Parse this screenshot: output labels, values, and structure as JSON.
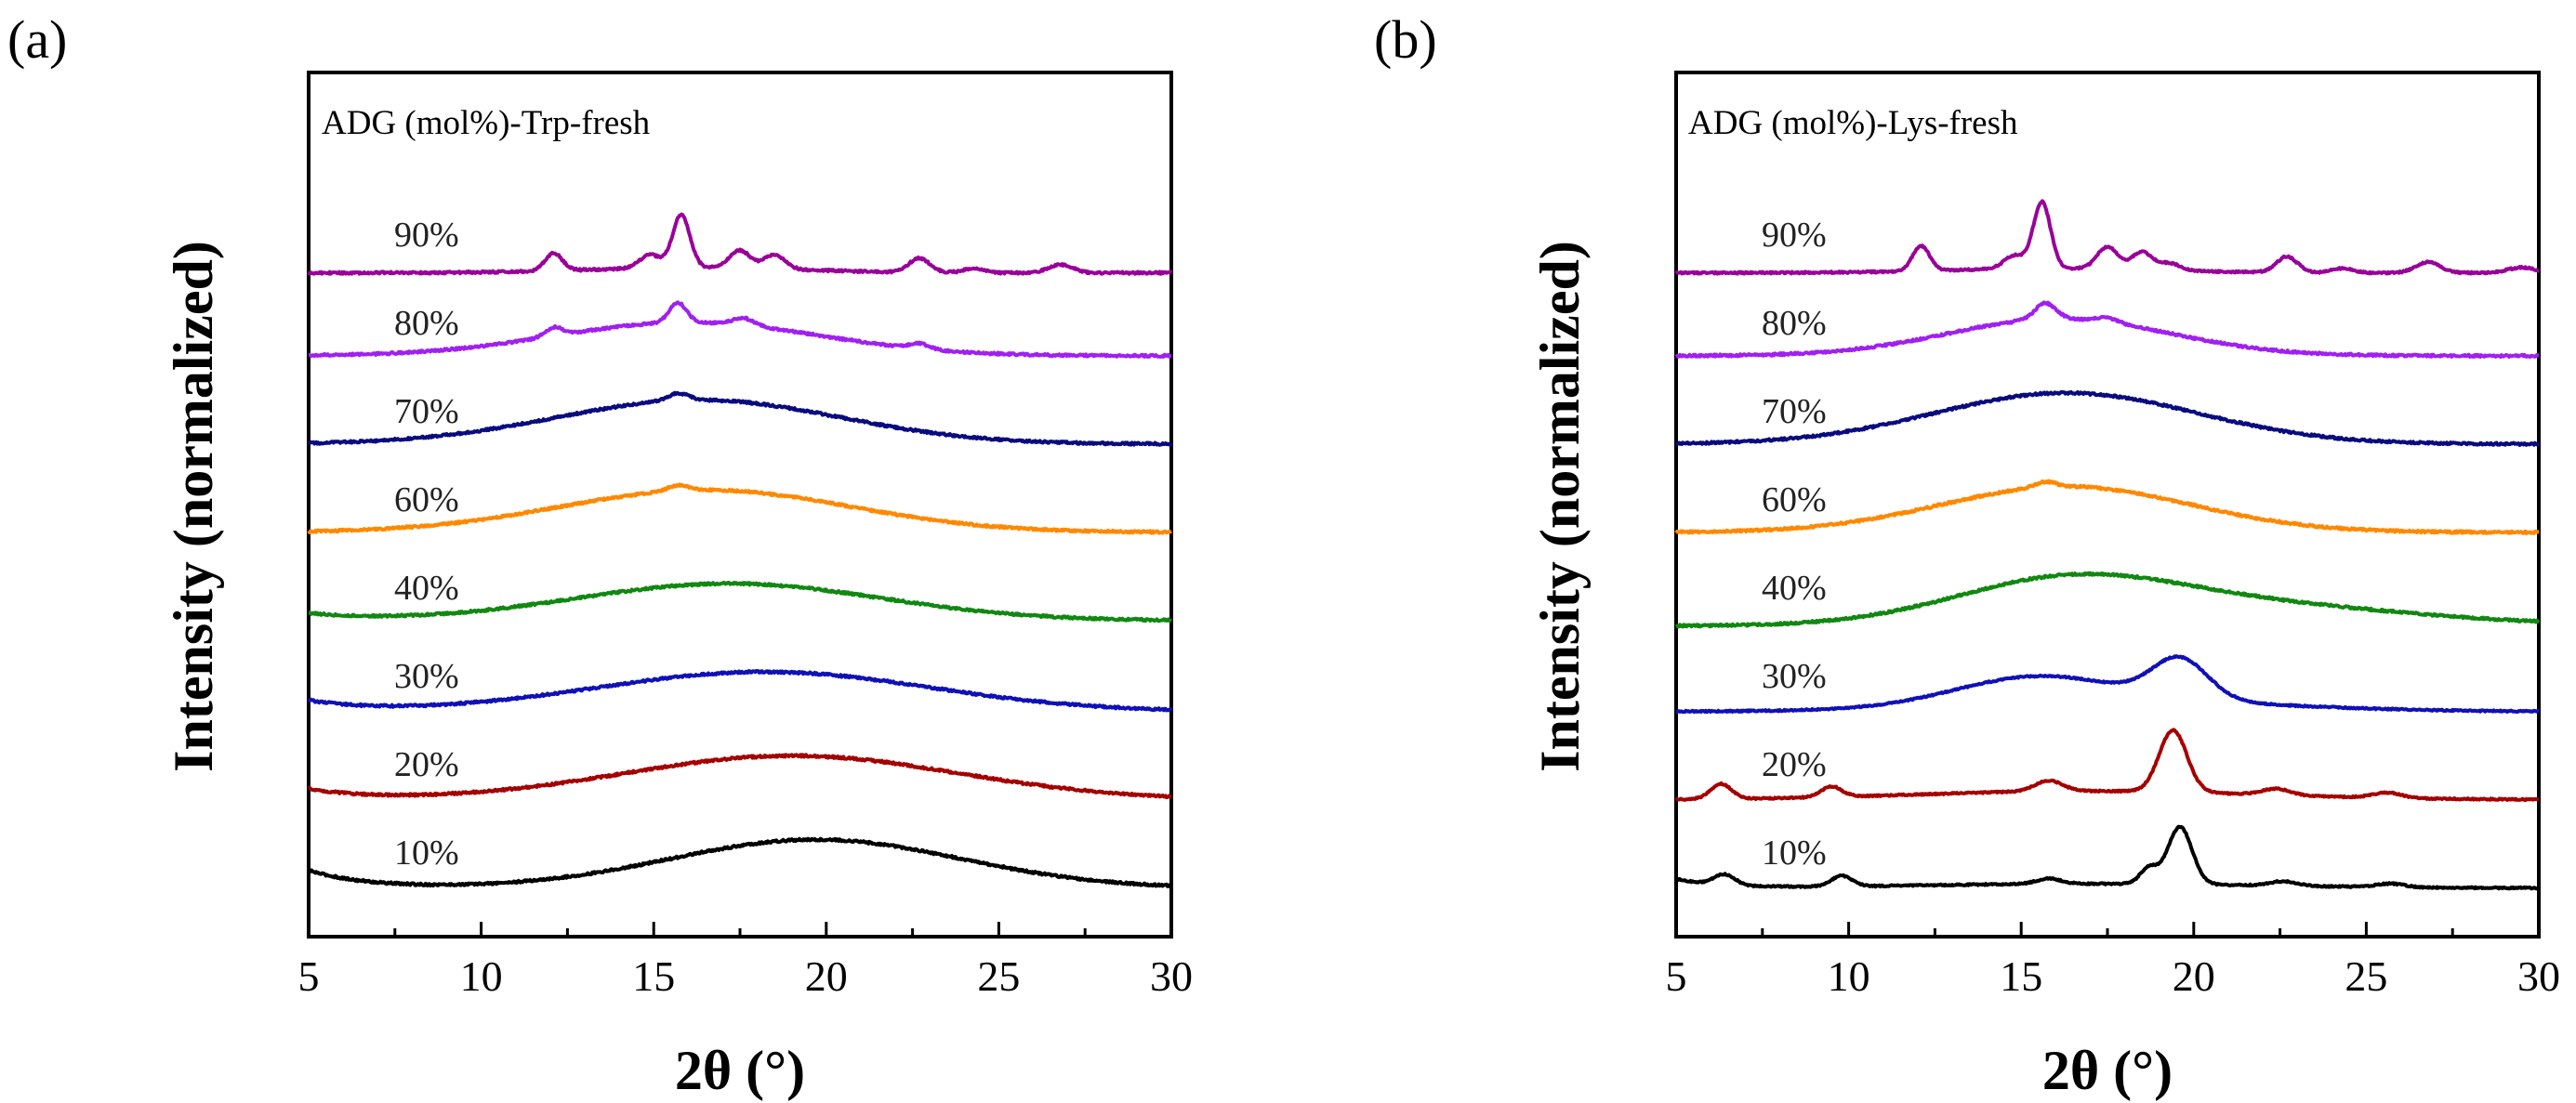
{
  "chart_data": [
    {
      "type": "line",
      "panel_label": "(a)",
      "title": "ADG (mol%)-Trp-fresh",
      "xlabel": "2θ (°)",
      "ylabel": "Intensity (normalized)",
      "xlim": [
        5,
        30
      ],
      "xticks": [
        "5",
        "10",
        "15",
        "20",
        "25",
        "30"
      ],
      "yticks": [],
      "series": [
        {
          "name": "10%",
          "color": "#000000",
          "offset": 0.0,
          "base": 0.15,
          "noise": 0.012,
          "features": [
            {
              "type": "halo",
              "center": 19.7,
              "width": 4.2,
              "height": 0.55
            },
            {
              "type": "decay",
              "height": 0.2,
              "rate": 0.6
            }
          ]
        },
        {
          "name": "20%",
          "color": "#a50000",
          "offset": 1.0,
          "base": 0.15,
          "noise": 0.012,
          "features": [
            {
              "type": "halo",
              "center": 19.0,
              "width": 4.8,
              "height": 0.5
            },
            {
              "type": "decay",
              "height": 0.12,
              "rate": 0.6
            }
          ]
        },
        {
          "name": "30%",
          "color": "#1010b8",
          "offset": 2.0,
          "base": 0.15,
          "noise": 0.012,
          "features": [
            {
              "type": "halo",
              "center": 18.2,
              "width": 4.8,
              "height": 0.45
            },
            {
              "type": "decay",
              "height": 0.12,
              "rate": 0.6
            }
          ]
        },
        {
          "name": "40%",
          "color": "#118811",
          "offset": 3.0,
          "base": 0.18,
          "noise": 0.012,
          "features": [
            {
              "type": "halo",
              "center": 17.2,
              "width": 4.4,
              "height": 0.42
            },
            {
              "type": "decay",
              "height": 0.08,
              "rate": 0.6
            }
          ]
        },
        {
          "name": "60%",
          "color": "#ff8800",
          "offset": 4.0,
          "base": 0.18,
          "noise": 0.012,
          "features": [
            {
              "type": "halo",
              "center": 16.5,
              "width": 4.2,
              "height": 0.48
            },
            {
              "type": "peak",
              "center": 15.7,
              "width": 0.3,
              "height": 0.06
            }
          ]
        },
        {
          "name": "70%",
          "color": "#0a0a80",
          "offset": 5.0,
          "base": 0.18,
          "noise": 0.012,
          "features": [
            {
              "type": "halo",
              "center": 16.3,
              "width": 4.1,
              "height": 0.5
            },
            {
              "type": "peak",
              "center": 15.7,
              "width": 0.3,
              "height": 0.08
            }
          ]
        },
        {
          "name": "80%",
          "color": "#a020f0",
          "offset": 6.0,
          "base": 0.18,
          "noise": 0.012,
          "features": [
            {
              "type": "halo",
              "center": 16.0,
              "width": 3.8,
              "height": 0.38
            },
            {
              "type": "peak",
              "center": 15.7,
              "width": 0.25,
              "height": 0.22
            },
            {
              "type": "peak",
              "center": 17.6,
              "width": 0.3,
              "height": 0.08
            },
            {
              "type": "peak",
              "center": 12.1,
              "width": 0.25,
              "height": 0.1
            },
            {
              "type": "peak",
              "center": 22.7,
              "width": 0.3,
              "height": 0.06
            }
          ]
        },
        {
          "name": "90%",
          "color": "#990099",
          "offset": 7.0,
          "base": 0.12,
          "noise": 0.012,
          "features": [
            {
              "type": "halo",
              "center": 16.2,
              "width": 3.0,
              "height": 0.06
            },
            {
              "type": "peak",
              "center": 15.8,
              "width": 0.25,
              "height": 0.6
            },
            {
              "type": "peak",
              "center": 12.1,
              "width": 0.25,
              "height": 0.2
            },
            {
              "type": "peak",
              "center": 14.9,
              "width": 0.3,
              "height": 0.15
            },
            {
              "type": "peak",
              "center": 17.5,
              "width": 0.3,
              "height": 0.2
            },
            {
              "type": "peak",
              "center": 18.5,
              "width": 0.3,
              "height": 0.16
            },
            {
              "type": "peak",
              "center": 22.7,
              "width": 0.3,
              "height": 0.16
            },
            {
              "type": "peak",
              "center": 26.8,
              "width": 0.35,
              "height": 0.09
            },
            {
              "type": "peak",
              "center": 24.3,
              "width": 0.3,
              "height": 0.05
            }
          ]
        }
      ]
    },
    {
      "type": "line",
      "panel_label": "(b)",
      "title": "ADG (mol%)-Lys-fresh",
      "xlabel": "2θ (°)",
      "ylabel": "Intensity (normalized)",
      "xlim": [
        5,
        30
      ],
      "xticks": [
        "5",
        "10",
        "15",
        "20",
        "25",
        "30"
      ],
      "yticks": [],
      "series": [
        {
          "name": "10%",
          "color": "#000000",
          "offset": 0.0,
          "base": 0.15,
          "noise": 0.008,
          "features": [
            {
              "type": "peak",
              "center": 19.6,
              "width": 0.35,
              "height": 0.65
            },
            {
              "type": "peak",
              "center": 18.7,
              "width": 0.25,
              "height": 0.18
            },
            {
              "type": "peak",
              "center": 6.4,
              "width": 0.3,
              "height": 0.12
            },
            {
              "type": "peak",
              "center": 9.8,
              "width": 0.3,
              "height": 0.12
            },
            {
              "type": "peak",
              "center": 15.8,
              "width": 0.35,
              "height": 0.06
            },
            {
              "type": "peak",
              "center": 22.6,
              "width": 0.4,
              "height": 0.05
            },
            {
              "type": "peak",
              "center": 25.7,
              "width": 0.4,
              "height": 0.04
            },
            {
              "type": "decay",
              "height": 0.1,
              "rate": 0.8
            },
            {
              "type": "halo",
              "center": 17,
              "width": 5,
              "height": 0.05
            }
          ]
        },
        {
          "name": "20%",
          "color": "#a50000",
          "offset": 1.0,
          "base": 0.15,
          "noise": 0.008,
          "features": [
            {
              "type": "peak",
              "center": 19.4,
              "width": 0.4,
              "height": 0.7
            },
            {
              "type": "peak",
              "center": 6.3,
              "width": 0.3,
              "height": 0.17
            },
            {
              "type": "peak",
              "center": 9.5,
              "width": 0.3,
              "height": 0.12
            },
            {
              "type": "peak",
              "center": 15.8,
              "width": 0.4,
              "height": 0.12
            },
            {
              "type": "peak",
              "center": 22.4,
              "width": 0.4,
              "height": 0.07
            },
            {
              "type": "peak",
              "center": 25.6,
              "width": 0.4,
              "height": 0.06
            },
            {
              "type": "halo",
              "center": 17,
              "width": 5,
              "height": 0.1
            }
          ]
        },
        {
          "name": "30%",
          "color": "#1010b8",
          "offset": 2.0,
          "base": 0.15,
          "noise": 0.008,
          "features": [
            {
              "type": "halo",
              "center": 15.4,
              "width": 2.3,
              "height": 0.3
            },
            {
              "type": "peak",
              "center": 19.6,
              "width": 0.8,
              "height": 0.45
            },
            {
              "type": "halo",
              "center": 18,
              "width": 4.5,
              "height": 0.12
            }
          ]
        },
        {
          "name": "40%",
          "color": "#118811",
          "offset": 3.0,
          "base": 0.12,
          "noise": 0.012,
          "features": [
            {
              "type": "halo",
              "center": 16.2,
              "width": 3.2,
              "height": 0.42
            },
            {
              "type": "halo",
              "center": 21,
              "width": 5,
              "height": 0.25
            }
          ]
        },
        {
          "name": "60%",
          "color": "#ff8800",
          "offset": 4.0,
          "base": 0.18,
          "noise": 0.012,
          "features": [
            {
              "type": "halo",
              "center": 16.3,
              "width": 3.6,
              "height": 0.52
            },
            {
              "type": "peak",
              "center": 15.7,
              "width": 0.3,
              "height": 0.06
            }
          ]
        },
        {
          "name": "70%",
          "color": "#0a0a80",
          "offset": 5.0,
          "base": 0.18,
          "noise": 0.012,
          "features": [
            {
              "type": "halo",
              "center": 16.3,
              "width": 3.8,
              "height": 0.58
            }
          ]
        },
        {
          "name": "80%",
          "color": "#a020f0",
          "offset": 6.0,
          "base": 0.18,
          "noise": 0.012,
          "features": [
            {
              "type": "halo",
              "center": 16.1,
              "width": 3.2,
              "height": 0.42
            },
            {
              "type": "peak",
              "center": 15.7,
              "width": 0.3,
              "height": 0.18
            },
            {
              "type": "peak",
              "center": 17.5,
              "width": 0.3,
              "height": 0.05
            }
          ]
        },
        {
          "name": "90%",
          "color": "#990099",
          "offset": 7.0,
          "base": 0.12,
          "noise": 0.01,
          "features": [
            {
              "type": "peak",
              "center": 15.6,
              "width": 0.25,
              "height": 0.75
            },
            {
              "type": "peak",
              "center": 12.1,
              "width": 0.25,
              "height": 0.28
            },
            {
              "type": "peak",
              "center": 14.8,
              "width": 0.3,
              "height": 0.15
            },
            {
              "type": "peak",
              "center": 17.5,
              "width": 0.3,
              "height": 0.25
            },
            {
              "type": "peak",
              "center": 18.5,
              "width": 0.3,
              "height": 0.2
            },
            {
              "type": "peak",
              "center": 19.3,
              "width": 0.3,
              "height": 0.08
            },
            {
              "type": "peak",
              "center": 22.7,
              "width": 0.3,
              "height": 0.18
            },
            {
              "type": "peak",
              "center": 26.8,
              "width": 0.35,
              "height": 0.12
            },
            {
              "type": "peak",
              "center": 24.3,
              "width": 0.3,
              "height": 0.05
            },
            {
              "type": "peak",
              "center": 29.5,
              "width": 0.4,
              "height": 0.06
            },
            {
              "type": "halo",
              "center": 16,
              "width": 3,
              "height": 0.05
            }
          ]
        }
      ]
    }
  ]
}
